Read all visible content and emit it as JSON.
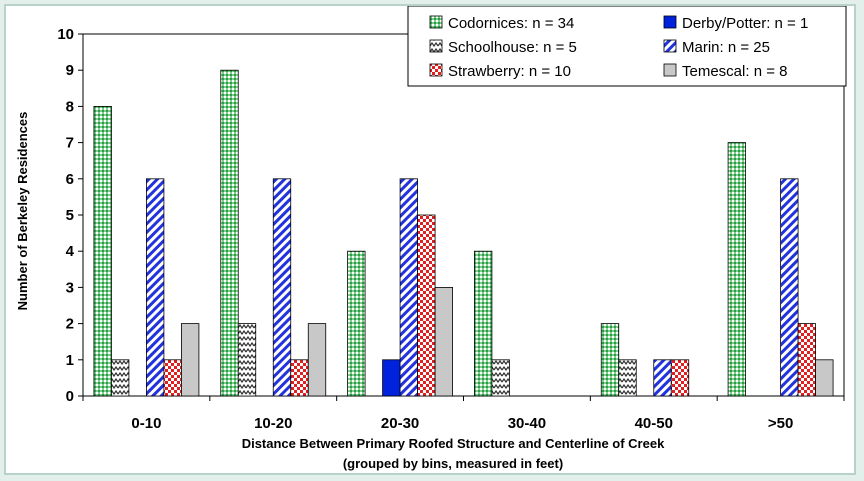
{
  "chart_data": {
    "type": "bar",
    "categories": [
      "0-10",
      "10-20",
      "20-30",
      "30-40",
      "40-50",
      ">50"
    ],
    "series": [
      {
        "name": "Codornices: n = 34",
        "values": [
          8,
          9,
          4,
          4,
          2,
          7
        ],
        "color": "#33aa55",
        "pattern": "dots-green"
      },
      {
        "name": "Derby/Potter: n = 1",
        "values": [
          0,
          0,
          1,
          0,
          0,
          0
        ],
        "color": "#0022dd",
        "pattern": "solid-blue"
      },
      {
        "name": "Schoolhouse: n = 5",
        "values": [
          1,
          2,
          0,
          1,
          1,
          0
        ],
        "color": "#555555",
        "pattern": "zigzag"
      },
      {
        "name": "Marin: n = 25",
        "values": [
          6,
          6,
          6,
          0,
          1,
          6
        ],
        "color": "#2233dd",
        "pattern": "diag-blue"
      },
      {
        "name": "Strawberry: n = 10",
        "values": [
          1,
          1,
          5,
          0,
          1,
          2
        ],
        "color": "#dd2222",
        "pattern": "checker-red"
      },
      {
        "name": "Temescal: n = 8",
        "values": [
          2,
          2,
          3,
          0,
          0,
          1
        ],
        "color": "#c8c8c8",
        "pattern": "solid-gray"
      }
    ],
    "series_order": [
      0,
      2,
      1,
      3,
      4,
      5
    ],
    "legend_order": [
      0,
      1,
      2,
      3,
      4,
      5
    ],
    "ylim": [
      0,
      10
    ],
    "yticks": [
      0,
      1,
      2,
      3,
      4,
      5,
      6,
      7,
      8,
      9,
      10
    ],
    "ylabel": "Number of Berkeley Residences",
    "xlabel": "Distance Between Primary Roofed Structure and Centerline of Creek",
    "xlabel2": "(grouped by bins, measured in feet)",
    "grid": false,
    "legend_position": "top-right"
  }
}
